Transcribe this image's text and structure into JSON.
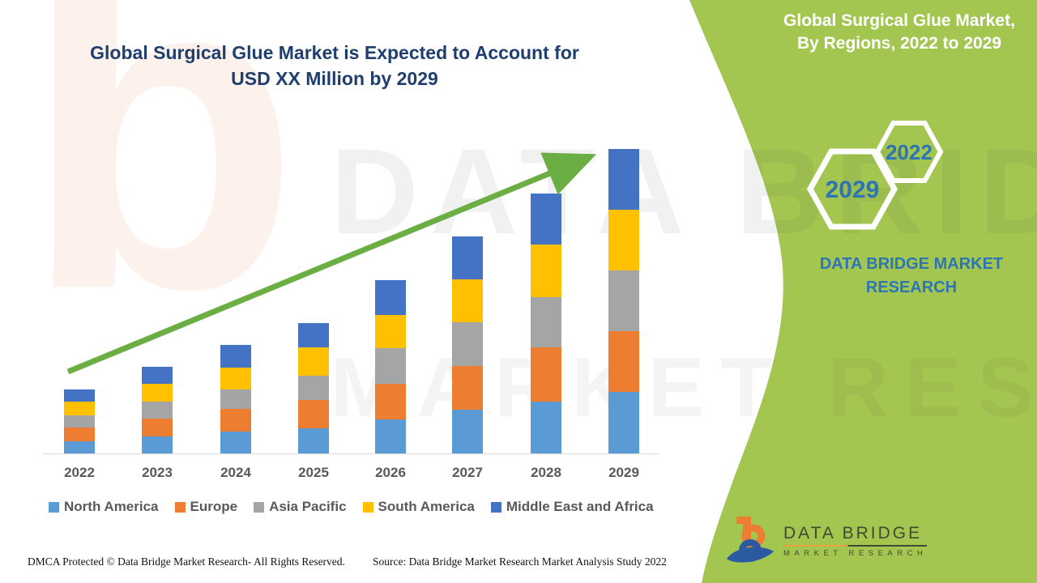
{
  "title": {
    "line1": "Global Surgical Glue Market is Expected to Account for",
    "line2": "USD XX Million by 2029"
  },
  "sidebar": {
    "banner_line1": "Global Surgical Glue Market,",
    "banner_line2": "By Regions, 2022 to 2029",
    "hexagons": [
      {
        "label": "2029"
      },
      {
        "label": "2022"
      }
    ],
    "brand_line1": "DATA BRIDGE MARKET",
    "brand_line2": "RESEARCH"
  },
  "chart_data": {
    "type": "bar",
    "stacked": true,
    "title": "Global Surgical Glue Market, By Regions, 2022 to 2029",
    "categories": [
      "2022",
      "2023",
      "2024",
      "2025",
      "2026",
      "2027",
      "2028",
      "2029"
    ],
    "series": [
      {
        "name": "North America",
        "color": "#5B9BD5",
        "values": [
          15,
          21,
          27,
          31,
          42,
          54,
          64,
          76
        ]
      },
      {
        "name": "Europe",
        "color": "#ED7D31",
        "values": [
          17,
          22,
          28,
          35,
          44,
          54,
          67,
          75
        ]
      },
      {
        "name": "Asia Pacific",
        "color": "#A5A5A5",
        "values": [
          15,
          21,
          24,
          30,
          44,
          54,
          62,
          75
        ]
      },
      {
        "name": "South America",
        "color": "#FFC000",
        "values": [
          17,
          22,
          27,
          35,
          41,
          53,
          65,
          75
        ]
      },
      {
        "name": "Middle East and Africa",
        "color": "#4472C4",
        "values": [
          15,
          21,
          28,
          30,
          43,
          53,
          63,
          75
        ]
      }
    ],
    "stack_order": "bottom to top as listed",
    "value_axis": "hidden (market size in USD XX Million, not labeled)",
    "units": "relative height units estimated from pixels",
    "grid": false,
    "legend_position": "bottom",
    "trend_arrow": true
  },
  "legend_note": "legend built from chart_data.series names",
  "footer": {
    "dmca": "DMCA Protected © Data Bridge Market Research- All Rights Reserved.",
    "source": "Source: Data Bridge Market Research Market Analysis Study 2022"
  },
  "logo": {
    "name": "DATA BRIDGE",
    "tagline": "MARKET RESEARCH"
  },
  "watermark": {
    "letter": "b",
    "line1": "DATA BRIDGE",
    "line2": "MARKET RESEARCH"
  },
  "colors": {
    "sidebar_green": "#A3C650",
    "title_navy": "#1F3E6E",
    "brand_blue": "#2E75B6",
    "arrow_green": "#6BAE44",
    "axis_gray": "#D9D9D9",
    "label_gray": "#595959",
    "hexagon_year_blue": "#2E74B5"
  }
}
